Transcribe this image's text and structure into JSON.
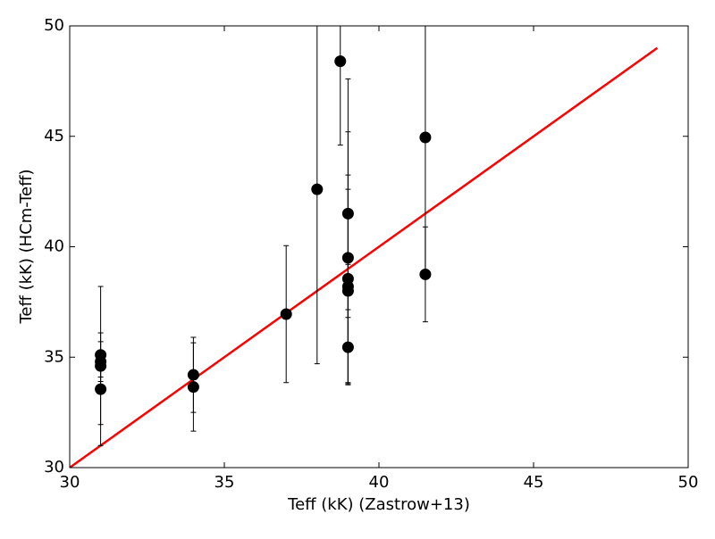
{
  "chart_data": {
    "type": "scatter",
    "xlabel": "Teff (kK) (Zastrow+13)",
    "ylabel": "Teff (kK) (HCm-Teff)",
    "xlim": [
      30,
      50
    ],
    "ylim": [
      30,
      50
    ],
    "xticks": [
      30,
      35,
      40,
      45,
      50
    ],
    "yticks": [
      30,
      35,
      40,
      45,
      50
    ],
    "series": [
      {
        "color": "#000000",
        "x": [
          31,
          31,
          31,
          31,
          34,
          34,
          37,
          38,
          38.75,
          39,
          39,
          39,
          39,
          39,
          39,
          41.5,
          41.5
        ],
        "values": [
          35.1,
          34.8,
          34.6,
          33.55,
          34.2,
          33.65,
          36.95,
          42.6,
          48.4,
          41.5,
          39.5,
          38.55,
          38.2,
          38.0,
          35.45,
          44.95,
          38.75
        ],
        "yerr": [
          1.0,
          0.9,
          3.6,
          1.6,
          1.7,
          2.0,
          3.1,
          7.9,
          3.8,
          6.1,
          5.7,
          4.7,
          4.4,
          1.2,
          1.7,
          6.0,
          2.15
        ]
      }
    ],
    "line": {
      "color": "#ff0000",
      "x": [
        30,
        49
      ],
      "values": [
        30,
        49
      ]
    }
  }
}
